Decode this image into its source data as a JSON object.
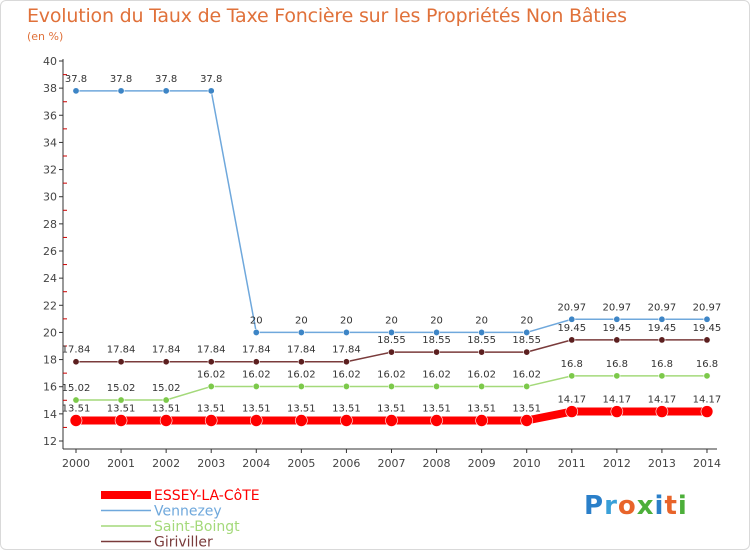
{
  "title": "Evolution du Taux de Taxe Foncière sur les Propriétés Non Bâties",
  "unit": "(en %)",
  "logo": {
    "text": "Proxiti",
    "letter_colors": [
      "#2a7fc9",
      "#3aa0d8",
      "#e8642a",
      "#4caf3a",
      "#2a7fc9",
      "#e8642a",
      "#4caf3a"
    ]
  },
  "chart_data": {
    "type": "line",
    "x": [
      "2000",
      "2001",
      "2002",
      "2003",
      "2004",
      "2005",
      "2006",
      "2007",
      "2008",
      "2009",
      "2010",
      "2011",
      "2012",
      "2013",
      "2014"
    ],
    "ylim": [
      12,
      40
    ],
    "yticks": [
      12,
      14,
      16,
      18,
      20,
      22,
      24,
      26,
      28,
      30,
      32,
      34,
      36,
      38,
      40
    ],
    "grid": false,
    "legend_position": "bottom-left",
    "series": [
      {
        "name": "ESSEY-LA-CôTE",
        "color": "#ff0000",
        "width": 8,
        "values": [
          13.51,
          13.51,
          13.51,
          13.51,
          13.51,
          13.51,
          13.51,
          13.51,
          13.51,
          13.51,
          13.51,
          14.17,
          14.17,
          14.17,
          14.17
        ],
        "labels": [
          "13.51",
          "13.51",
          "13.51",
          "13.51",
          "13.51",
          "13.51",
          "13.51",
          "13.51",
          "13.51",
          "13.51",
          "13.51",
          "14.17",
          "14.17",
          "14.17",
          "14.17"
        ]
      },
      {
        "name": "Vennezey",
        "color": "#6fa8dc",
        "width": 1.5,
        "values": [
          37.8,
          37.8,
          37.8,
          37.8,
          20,
          20,
          20,
          20,
          20,
          20,
          20,
          20.97,
          20.97,
          20.97,
          20.97
        ],
        "labels": [
          "37.8",
          "37.8",
          "37.8",
          "37.8",
          "20",
          "20",
          "20",
          "20",
          "20",
          "20",
          "20",
          "20.97",
          "20.97",
          "20.97",
          "20.97"
        ]
      },
      {
        "name": "Saint-Boingt",
        "color": "#a4d97a",
        "width": 1.5,
        "values": [
          15.02,
          15.02,
          15.02,
          16.02,
          16.02,
          16.02,
          16.02,
          16.02,
          16.02,
          16.02,
          16.02,
          16.8,
          16.8,
          16.8,
          16.8
        ],
        "labels": [
          "15.02",
          "15.02",
          "15.02",
          "16.02",
          "16.02",
          "16.02",
          "16.02",
          "16.02",
          "16.02",
          "16.02",
          "16.02",
          "16.8",
          "16.8",
          "16.8",
          "16.8"
        ]
      },
      {
        "name": "Giriviller",
        "color": "#7a3b3b",
        "width": 1.5,
        "values": [
          17.84,
          17.84,
          17.84,
          17.84,
          17.84,
          17.84,
          17.84,
          18.55,
          18.55,
          18.55,
          18.55,
          19.45,
          19.45,
          19.45,
          19.45
        ],
        "labels": [
          "17.84",
          "17.84",
          "17.84",
          "17.84",
          "17.84",
          "17.84",
          "17.84",
          "18.55",
          "18.55",
          "18.55",
          "18.55",
          "19.45",
          "19.45",
          "19.45",
          "19.45"
        ]
      }
    ]
  }
}
